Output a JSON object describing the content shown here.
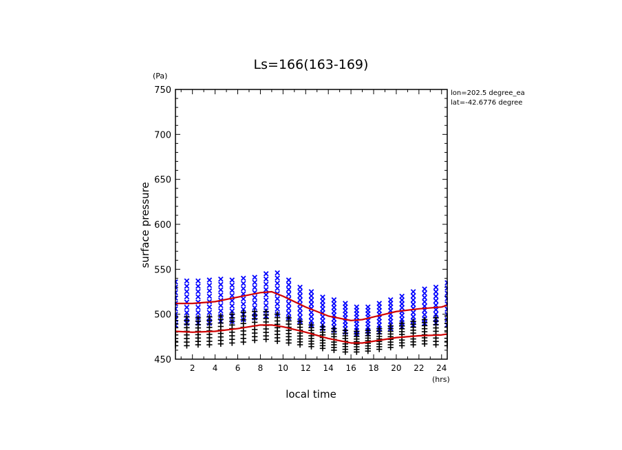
{
  "chart_data": {
    "type": "scatter",
    "title": "Ls=166(163-169)",
    "xlabel": "local time",
    "ylabel": "surface pressure",
    "x_unit": "(hrs)",
    "y_unit": "(Pa)",
    "xlim": [
      0.5,
      24.5
    ],
    "ylim": [
      450,
      750
    ],
    "x_ticks": [
      2,
      4,
      6,
      8,
      10,
      12,
      14,
      16,
      18,
      20,
      22,
      24
    ],
    "y_ticks": [
      450,
      500,
      550,
      600,
      650,
      700,
      750
    ],
    "annotations": [
      "lon=202.5 degree_ea",
      "lat=-42.6776 degree"
    ],
    "grid": false,
    "colors": {
      "upper_markers": "#0000ff",
      "lower_markers": "#000000",
      "mean_lines": "#d00000"
    },
    "series": [
      {
        "marker": "x",
        "color": "#0000ff",
        "x": [
          0.5,
          1.5,
          2.5,
          3.5,
          4.5,
          5.5,
          6.5,
          7.5,
          8.5,
          9.5,
          10.5,
          11.5,
          12.5,
          13.5,
          14.5,
          15.5,
          16.5,
          17.5,
          18.5,
          19.5,
          20.5,
          21.5,
          22.5,
          23.5,
          24.5
        ],
        "y_max": [
          536,
          537,
          537,
          538,
          539,
          538,
          540,
          541,
          545,
          546,
          538,
          530,
          525,
          519,
          516,
          512,
          508,
          508,
          512,
          516,
          520,
          525,
          528,
          530,
          535
        ],
        "y_min": [
          488,
          490,
          490,
          490,
          492,
          492,
          494,
          496,
          498,
          500,
          496,
          492,
          488,
          484,
          482,
          480,
          478,
          478,
          480,
          484,
          486,
          488,
          490,
          490,
          488
        ]
      },
      {
        "marker": "+",
        "color": "#000000",
        "x": [
          0.5,
          1.5,
          2.5,
          3.5,
          4.5,
          5.5,
          6.5,
          7.5,
          8.5,
          9.5,
          10.5,
          11.5,
          12.5,
          13.5,
          14.5,
          15.5,
          16.5,
          17.5,
          18.5,
          19.5,
          20.5,
          21.5,
          22.5,
          23.5,
          24.5
        ],
        "y_max": [
          497,
          497,
          496,
          497,
          498,
          500,
          502,
          503,
          503,
          500,
          496,
          492,
          488,
          486,
          484,
          482,
          481,
          482,
          484,
          487,
          490,
          492,
          494,
          496,
          498
        ],
        "y_min": [
          465,
          465,
          466,
          466,
          467,
          468,
          469,
          471,
          472,
          470,
          468,
          466,
          464,
          462,
          460,
          458,
          458,
          459,
          461,
          463,
          465,
          466,
          467,
          466,
          465
        ]
      },
      {
        "type": "line",
        "color": "#d00000",
        "x": [
          0.5,
          2,
          4,
          6,
          8,
          9,
          10,
          12,
          14,
          16,
          17,
          18,
          20,
          22,
          24,
          24.5
        ],
        "y": [
          512,
          512,
          514,
          519,
          524,
          525,
          520,
          508,
          498,
          493,
          494,
          497,
          503,
          506,
          508,
          510
        ]
      },
      {
        "type": "line",
        "color": "#d00000",
        "x": [
          0.5,
          2,
          4,
          6,
          8,
          9,
          10,
          12,
          14,
          16,
          17,
          18,
          20,
          22,
          24,
          24.5
        ],
        "y": [
          481,
          480,
          481,
          484,
          488,
          488,
          486,
          480,
          473,
          468,
          468,
          470,
          474,
          476,
          477,
          478
        ]
      }
    ]
  }
}
